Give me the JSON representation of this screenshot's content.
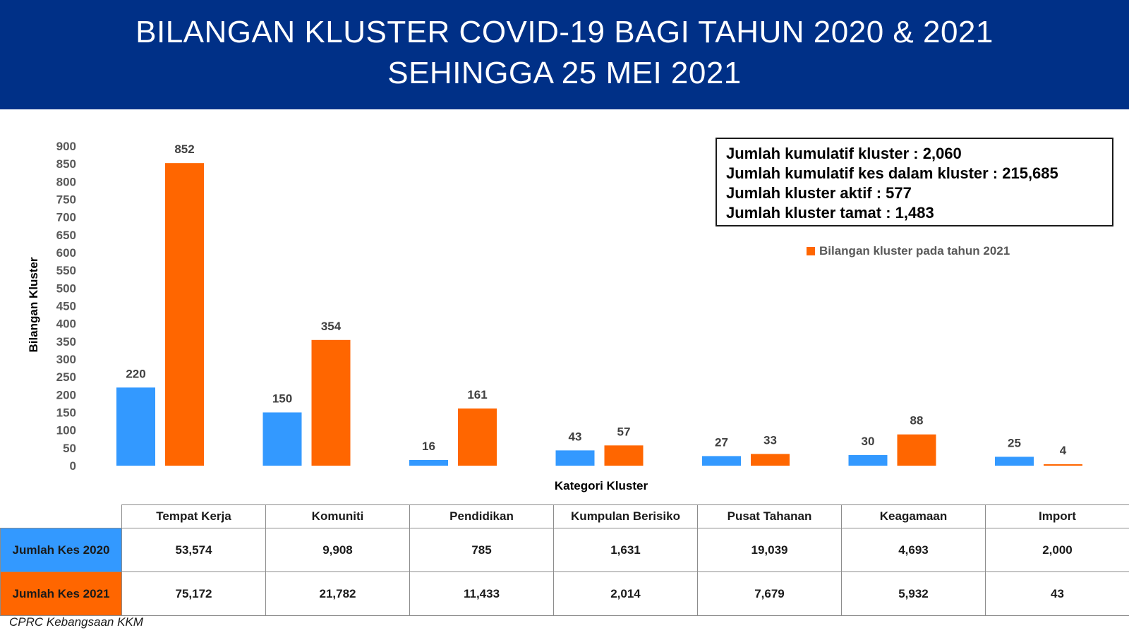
{
  "header": {
    "title_line1": "BILANGAN KLUSTER COVID-19 BAGI TAHUN 2020 & 2021",
    "title_line2": "SEHINGGA 25 MEI 2021"
  },
  "info_box": {
    "line1": "Jumlah kumulatif kluster : 2,060",
    "line2": "Jumlah kumulatif kes dalam kluster : 215,685",
    "line3": "Jumlah kluster aktif : 577",
    "line4": "Jumlah kluster tamat : 1,483"
  },
  "legend": {
    "visible_label": "Bilangan kluster pada tahun 2021"
  },
  "chart_data": {
    "type": "bar",
    "categories": [
      "Tempat Kerja",
      "Komuniti",
      "Pendidikan",
      "Kumpulan Berisiko",
      "Pusat Tahanan",
      "Keagamaan",
      "Import"
    ],
    "series": [
      {
        "values": [
          220,
          150,
          16,
          43,
          27,
          30,
          25
        ],
        "color": "#3399ff"
      },
      {
        "name": "Bilangan kluster pada tahun 2021",
        "values": [
          852,
          354,
          161,
          57,
          33,
          88,
          4
        ],
        "color": "#ff6600"
      }
    ],
    "xlabel": "Kategori Kluster",
    "ylabel": "Bilangan Kluster",
    "ylim": [
      0,
      900
    ],
    "yticks": [
      0,
      50,
      100,
      150,
      200,
      250,
      300,
      350,
      400,
      450,
      500,
      550,
      600,
      650,
      700,
      750,
      800,
      850,
      900
    ],
    "grid": false,
    "data_labels": true,
    "legend_position": "top-right"
  },
  "table": {
    "columns": [
      "Tempat Kerja",
      "Komuniti",
      "Pendidikan",
      "Kumpulan Berisiko",
      "Pusat Tahanan",
      "Keagamaan",
      "Import"
    ],
    "rows": [
      {
        "label": "Jumlah Kes 2020",
        "values": [
          "53,574",
          "9,908",
          "785",
          "1,631",
          "19,039",
          "4,693",
          "2,000"
        ]
      },
      {
        "label": "Jumlah Kes 2021",
        "values": [
          "75,172",
          "21,782",
          "11,433",
          "2,014",
          "7,679",
          "5,932",
          "43"
        ]
      }
    ]
  },
  "source": "CPRC Kebangsaan KKM"
}
